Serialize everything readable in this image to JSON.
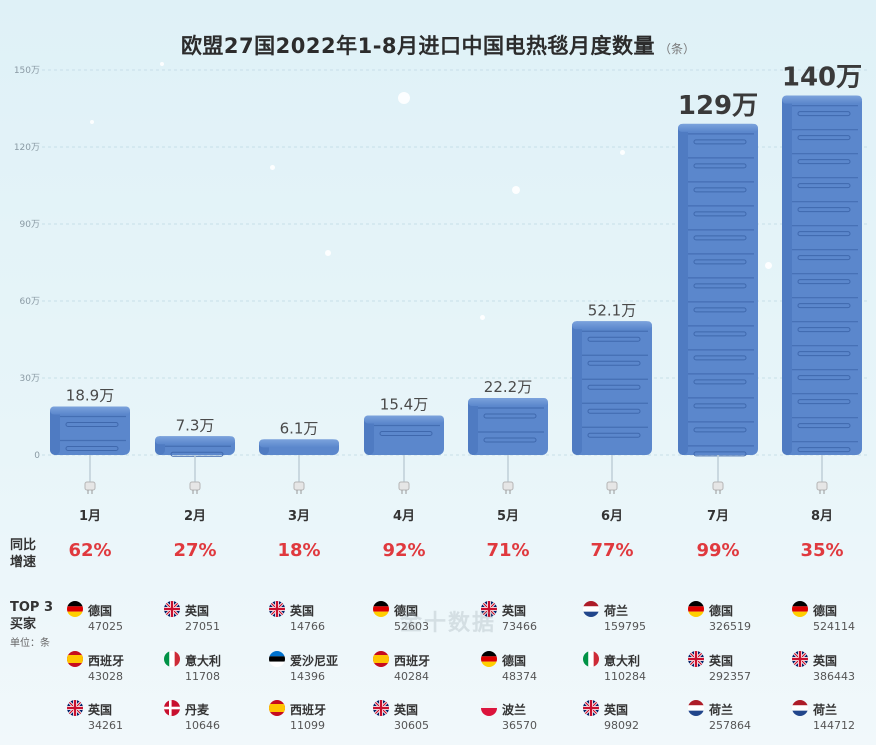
{
  "chart_data": {
    "type": "bar",
    "title": "欧盟27国2022年1-8月进口中国电热毯月度数量",
    "unit": "（条）",
    "categories": [
      "1月",
      "2月",
      "3月",
      "4月",
      "5月",
      "6月",
      "7月",
      "8月"
    ],
    "values": [
      189000,
      73000,
      61000,
      154000,
      222000,
      521000,
      1290000,
      1400000
    ],
    "value_labels": [
      "18.9万",
      "7.3万",
      "6.1万",
      "15.4万",
      "22.2万",
      "52.1万",
      "129万",
      "140万"
    ],
    "yticks": [
      "0",
      "30万",
      "60万",
      "90万",
      "120万",
      "150万"
    ],
    "ylim": [
      0,
      1500000
    ],
    "bar_color": "#5b87cc"
  },
  "yoy": {
    "label_line1": "同比",
    "label_line2": "增速",
    "values": [
      "62%",
      "27%",
      "18%",
      "92%",
      "71%",
      "77%",
      "99%",
      "35%"
    ]
  },
  "top3": {
    "label_line1": "TOP 3",
    "label_line2": "买家",
    "unit_note": "单位：条",
    "months": [
      [
        {
          "country": "德国",
          "flag": "de",
          "value": "47025"
        },
        {
          "country": "西班牙",
          "flag": "es",
          "value": "43028"
        },
        {
          "country": "英国",
          "flag": "gb",
          "value": "34261"
        }
      ],
      [
        {
          "country": "英国",
          "flag": "gb",
          "value": "27051"
        },
        {
          "country": "意大利",
          "flag": "it",
          "value": "11708"
        },
        {
          "country": "丹麦",
          "flag": "dk",
          "value": "10646"
        }
      ],
      [
        {
          "country": "英国",
          "flag": "gb",
          "value": "14766"
        },
        {
          "country": "爱沙尼亚",
          "flag": "ee",
          "value": "14396"
        },
        {
          "country": "西班牙",
          "flag": "es",
          "value": "11099"
        }
      ],
      [
        {
          "country": "德国",
          "flag": "de",
          "value": "52603"
        },
        {
          "country": "西班牙",
          "flag": "es",
          "value": "40284"
        },
        {
          "country": "英国",
          "flag": "gb",
          "value": "30605"
        }
      ],
      [
        {
          "country": "英国",
          "flag": "gb",
          "value": "73466"
        },
        {
          "country": "德国",
          "flag": "de",
          "value": "48374"
        },
        {
          "country": "波兰",
          "flag": "pl",
          "value": "36570"
        }
      ],
      [
        {
          "country": "荷兰",
          "flag": "nl",
          "value": "159795"
        },
        {
          "country": "意大利",
          "flag": "it",
          "value": "110284"
        },
        {
          "country": "英国",
          "flag": "gb",
          "value": "98092"
        }
      ],
      [
        {
          "country": "德国",
          "flag": "de",
          "value": "326519"
        },
        {
          "country": "英国",
          "flag": "gb",
          "value": "292357"
        },
        {
          "country": "荷兰",
          "flag": "nl",
          "value": "257864"
        }
      ],
      [
        {
          "country": "德国",
          "flag": "de",
          "value": "524114"
        },
        {
          "country": "英国",
          "flag": "gb",
          "value": "386443"
        },
        {
          "country": "荷兰",
          "flag": "nl",
          "value": "144712"
        }
      ]
    ]
  },
  "watermark": "金十数据"
}
